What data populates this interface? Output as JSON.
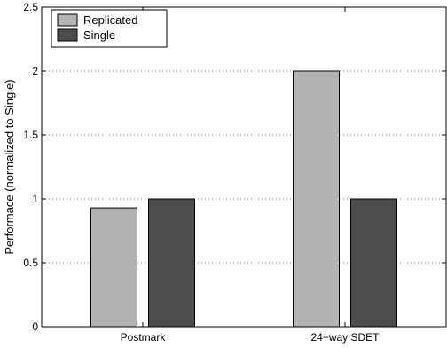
{
  "chart_data": {
    "type": "bar",
    "title": "",
    "xlabel": "",
    "ylabel": "Performace (normalized to Single)",
    "categories": [
      "Postmark",
      "24−way SDET"
    ],
    "series": [
      {
        "name": "Replicated",
        "values": [
          0.93,
          2.0
        ],
        "color": "#b3b3b3"
      },
      {
        "name": "Single",
        "values": [
          1.0,
          1.0
        ],
        "color": "#4d4d4d"
      }
    ],
    "ylim": [
      0,
      2.5
    ],
    "yticks": [
      0,
      0.5,
      1,
      1.5,
      2,
      2.5
    ],
    "ytick_labels": [
      "0",
      "0.5",
      "1",
      "1.5",
      "2",
      "2.5"
    ],
    "grid": "horizontal dotted",
    "legend_position": "top-left"
  }
}
